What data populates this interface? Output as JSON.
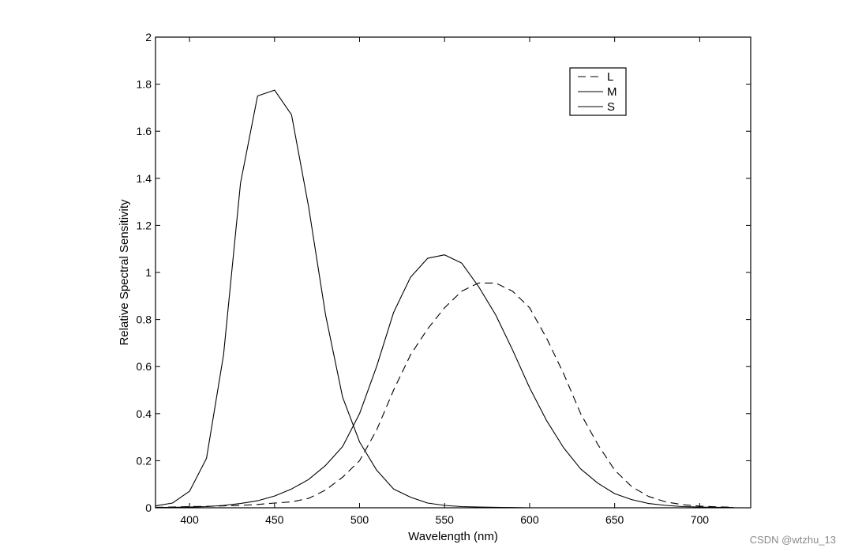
{
  "chart_data": {
    "type": "line",
    "title": "",
    "xlabel": "Wavelength (nm)",
    "ylabel": "Relative Spectral Sensitivity",
    "xlim": [
      380,
      730
    ],
    "ylim": [
      0,
      2
    ],
    "x_ticks": [
      400,
      450,
      500,
      550,
      600,
      650,
      700
    ],
    "y_ticks": [
      0,
      0.2,
      0.4,
      0.6,
      0.8,
      1,
      1.2,
      1.4,
      1.6,
      1.8,
      2
    ],
    "x_tick_labels": [
      "400",
      "450",
      "500",
      "550",
      "600",
      "650",
      "700"
    ],
    "y_tick_labels": [
      "0",
      "0.2",
      "0.4",
      "0.6",
      "0.8",
      "1",
      "1.2",
      "1.4",
      "1.6",
      "1.8",
      "2"
    ],
    "grid": false,
    "legend_position": "top-right",
    "series": [
      {
        "name": "L",
        "style": "dashed",
        "color": "#000000",
        "x": [
          380,
          390,
          400,
          410,
          420,
          430,
          440,
          450,
          460,
          470,
          480,
          490,
          500,
          510,
          520,
          530,
          540,
          550,
          560,
          570,
          580,
          590,
          600,
          610,
          620,
          630,
          640,
          650,
          660,
          670,
          680,
          690,
          700,
          710,
          720
        ],
        "values": [
          0.002,
          0.003,
          0.005,
          0.006,
          0.008,
          0.01,
          0.014,
          0.02,
          0.025,
          0.04,
          0.075,
          0.13,
          0.2,
          0.33,
          0.5,
          0.65,
          0.76,
          0.85,
          0.92,
          0.955,
          0.955,
          0.92,
          0.85,
          0.72,
          0.57,
          0.4,
          0.27,
          0.16,
          0.09,
          0.048,
          0.025,
          0.013,
          0.007,
          0.004,
          0.002
        ]
      },
      {
        "name": "M",
        "style": "solid",
        "color": "#000000",
        "x": [
          380,
          390,
          400,
          410,
          420,
          430,
          440,
          450,
          460,
          470,
          480,
          490,
          500,
          510,
          520,
          530,
          540,
          550,
          560,
          570,
          580,
          590,
          600,
          610,
          620,
          630,
          640,
          650,
          660,
          670,
          680,
          690,
          700,
          710,
          720
        ],
        "values": [
          0.001,
          0.002,
          0.003,
          0.005,
          0.01,
          0.018,
          0.03,
          0.05,
          0.08,
          0.12,
          0.18,
          0.26,
          0.4,
          0.6,
          0.83,
          0.98,
          1.06,
          1.075,
          1.04,
          0.94,
          0.82,
          0.67,
          0.51,
          0.37,
          0.255,
          0.165,
          0.105,
          0.06,
          0.035,
          0.018,
          0.01,
          0.005,
          0.003,
          0.002,
          0.001
        ]
      },
      {
        "name": "S",
        "style": "solid",
        "color": "#000000",
        "x": [
          380,
          390,
          400,
          410,
          420,
          430,
          440,
          450,
          460,
          470,
          480,
          490,
          500,
          510,
          520,
          530,
          540,
          550,
          560,
          570,
          580,
          590,
          600
        ],
        "values": [
          0.008,
          0.02,
          0.07,
          0.21,
          0.65,
          1.38,
          1.75,
          1.775,
          1.67,
          1.28,
          0.82,
          0.47,
          0.28,
          0.16,
          0.08,
          0.045,
          0.02,
          0.01,
          0.005,
          0.003,
          0.002,
          0.001,
          0.0
        ]
      }
    ]
  },
  "watermark": "CSDN @wtzhu_13"
}
